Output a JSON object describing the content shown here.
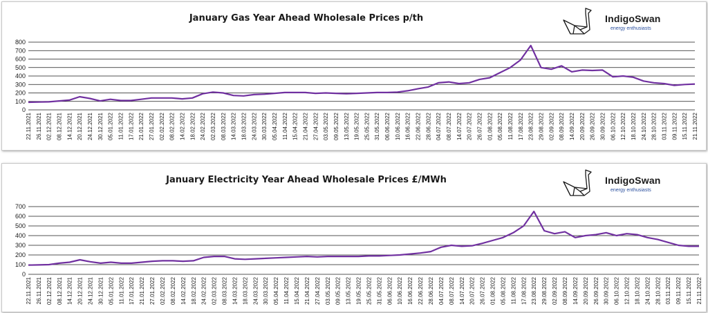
{
  "colors": {
    "line": "#7030A0",
    "grid": "#1a1a1a",
    "text": "#1a1a1a",
    "brand_tag": "#2a4f9e"
  },
  "logo": {
    "name": "IndigoSwan",
    "tagline": "energy enthusiasts",
    "icon": "origami-swan-icon"
  },
  "chart_data": [
    {
      "type": "line",
      "title": "January Gas Year Ahead Wholesale Prices p/th",
      "ylim": [
        0,
        800
      ],
      "yticks": [
        "0",
        "100",
        "200",
        "300",
        "400",
        "500",
        "600",
        "700",
        "800"
      ],
      "x": [
        "22.11.2021",
        "26.11.2021",
        "02.12.2021",
        "08.12.2021",
        "14.12.2021",
        "20.12.2021",
        "24.12.2021",
        "30.12.2021",
        "05.01.2022",
        "11.01.2022",
        "17.01.2022",
        "21.01.2022",
        "27.01.2022",
        "02.02.2022",
        "08.02.2022",
        "14.02.2022",
        "18.02.2022",
        "24.02.2022",
        "02.03.2022",
        "08.03.2022",
        "14.03.2022",
        "18.03.2022",
        "24.03.2022",
        "30.03.2022",
        "05.04.2022",
        "11.04.2022",
        "15.04.2022",
        "21.04.2022",
        "27.04.2022",
        "03.05.2022",
        "09.05.2022",
        "13.05.2022",
        "19.05.2022",
        "25.05.2022",
        "31.05.2022",
        "06.06.2022",
        "10.06.2022",
        "16.06.2022",
        "22.06.2022",
        "28.06.2022",
        "04.07.2022",
        "08.07.2022",
        "14.07.2022",
        "20.07.2022",
        "26.07.2022",
        "01.08.2022",
        "05.08.2022",
        "11.08.2022",
        "17.08.2022",
        "23.08.2022",
        "29.08.2022",
        "02.09.2022",
        "08.09.2022",
        "14.09.2022",
        "20.09.2022",
        "26.09.2022",
        "30.09.2022",
        "06.10.2022",
        "12.10.2022",
        "18.10.2022",
        "24.10.2022",
        "28.10.2022",
        "03.11.2022",
        "09.11.2022",
        "15.11.2022",
        "21.11.2022"
      ],
      "series": [
        {
          "values": [
            90,
            92,
            95,
            105,
            115,
            155,
            135,
            105,
            125,
            110,
            110,
            125,
            140,
            140,
            140,
            130,
            140,
            190,
            210,
            200,
            170,
            165,
            180,
            185,
            195,
            205,
            205,
            205,
            195,
            200,
            195,
            190,
            195,
            200,
            205,
            205,
            210,
            225,
            250,
            270,
            320,
            330,
            310,
            320,
            360,
            380,
            440,
            500,
            590,
            760,
            500,
            480,
            520,
            450,
            470,
            465,
            470,
            390,
            400,
            385,
            340,
            320,
            310,
            290,
            300,
            305
          ]
        }
      ]
    },
    {
      "type": "line",
      "title": "January Electricity Year Ahead Wholesale Prices £/MWh",
      "ylim": [
        0,
        700
      ],
      "yticks": [
        "0",
        "100",
        "200",
        "300",
        "400",
        "500",
        "600",
        "700"
      ],
      "x": [
        "22.11.2021",
        "26.11.2021",
        "02.12.2021",
        "08.12.2021",
        "14.12.2021",
        "20.12.2021",
        "24.12.2021",
        "30.12.2021",
        "05.01.2022",
        "11.01.2022",
        "17.01.2022",
        "21.01.2022",
        "27.01.2022",
        "02.02.2022",
        "08.02.2022",
        "14.02.2022",
        "18.02.2022",
        "24.02.2022",
        "02.03.2022",
        "08.03.2022",
        "14.03.2022",
        "18.03.2022",
        "24.03.2022",
        "30.03.2022",
        "05.04.2022",
        "11.04.2022",
        "15.04.2022",
        "21.04.2022",
        "27.04.2022",
        "03.05.2022",
        "09.05.2022",
        "13.05.2022",
        "19.05.2022",
        "25.05.2022",
        "31.05.2022",
        "06.06.2022",
        "10.06.2022",
        "16.06.2022",
        "22.06.2022",
        "28.06.2022",
        "04.07.2022",
        "08.07.2022",
        "14.07.2022",
        "20.07.2022",
        "26.07.2022",
        "01.08.2022",
        "05.08.2022",
        "11.08.2022",
        "17.08.2022",
        "23.08.2022",
        "29.08.2022",
        "02.09.2022",
        "08.09.2022",
        "14.09.2022",
        "20.09.2022",
        "26.09.2022",
        "30.09.2022",
        "06.10.2022",
        "12.10.2022",
        "18.10.2022",
        "24.10.2022",
        "28.10.2022",
        "03.11.2022",
        "09.11.2022",
        "15.11.2022",
        "21.11.2022"
      ],
      "series": [
        {
          "values": [
            95,
            97,
            100,
            115,
            125,
            150,
            130,
            115,
            125,
            115,
            115,
            125,
            135,
            140,
            140,
            135,
            140,
            175,
            185,
            185,
            160,
            155,
            160,
            165,
            170,
            175,
            180,
            185,
            180,
            185,
            185,
            185,
            185,
            190,
            190,
            195,
            200,
            210,
            220,
            235,
            280,
            300,
            290,
            295,
            320,
            350,
            380,
            430,
            500,
            650,
            450,
            420,
            440,
            380,
            400,
            410,
            430,
            400,
            420,
            410,
            380,
            360,
            330,
            300,
            290,
            290
          ]
        }
      ]
    }
  ]
}
